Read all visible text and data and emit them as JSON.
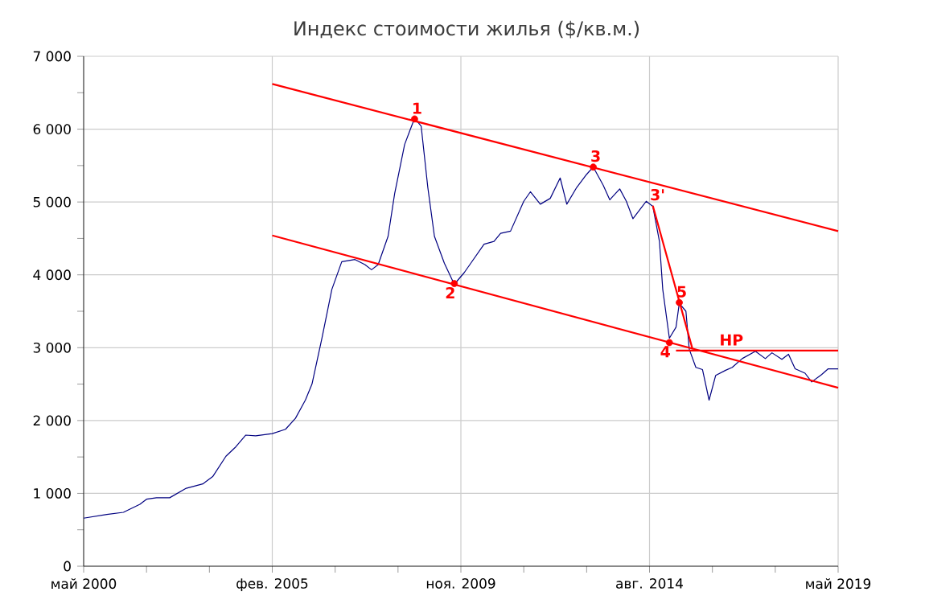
{
  "chart_data": {
    "type": "line",
    "title": "Индекс стоимости жилья ($/кв.м.)",
    "xlim": [
      "2000-05",
      "2019-05"
    ],
    "xticks": [
      {
        "value": "2000-05",
        "label": "май 2000"
      },
      {
        "value": "2001-12",
        "label": null
      },
      {
        "value": "2003-07",
        "label": null
      },
      {
        "value": "2005-02",
        "label": "фев. 2005"
      },
      {
        "value": "2006-09",
        "label": null
      },
      {
        "value": "2008-04",
        "label": null
      },
      {
        "value": "2009-11",
        "label": "ноя. 2009"
      },
      {
        "value": "2011-06",
        "label": null
      },
      {
        "value": "2013-01",
        "label": null
      },
      {
        "value": "2014-08",
        "label": "авг. 2014"
      },
      {
        "value": "2016-03",
        "label": null
      },
      {
        "value": "2017-10",
        "label": null
      },
      {
        "value": "2019-05",
        "label": "май 2019"
      }
    ],
    "ylim": [
      0,
      7000
    ],
    "yticks": [
      {
        "value": 0,
        "label": "0"
      },
      {
        "value": 500,
        "label": null
      },
      {
        "value": 1000,
        "label": "1 000"
      },
      {
        "value": 1500,
        "label": null
      },
      {
        "value": 2000,
        "label": "2 000"
      },
      {
        "value": 2500,
        "label": null
      },
      {
        "value": 3000,
        "label": "3 000"
      },
      {
        "value": 3500,
        "label": null
      },
      {
        "value": 4000,
        "label": "4 000"
      },
      {
        "value": 4500,
        "label": null
      },
      {
        "value": 5000,
        "label": "5 000"
      },
      {
        "value": 5500,
        "label": null
      },
      {
        "value": 6000,
        "label": "6 000"
      },
      {
        "value": 6500,
        "label": null
      },
      {
        "value": 7000,
        "label": "7 000"
      }
    ],
    "grid": true,
    "series": [
      {
        "type": "line",
        "color": "#000080",
        "x": [
          "2000-05",
          "2000-12",
          "2001-05",
          "2001-10",
          "2001-12",
          "2002-03",
          "2002-07",
          "2002-12",
          "2003-05",
          "2003-08",
          "2003-12",
          "2004-03",
          "2004-06",
          "2004-09",
          "2005-02",
          "2005-06",
          "2005-09",
          "2005-12",
          "2006-02",
          "2006-05",
          "2006-08",
          "2006-11",
          "2007-03",
          "2007-06",
          "2007-08",
          "2007-10",
          "2008-01",
          "2008-03",
          "2008-06",
          "2008-09",
          "2008-11",
          "2009-01",
          "2009-03",
          "2009-06",
          "2009-09",
          "2009-12",
          "2010-02",
          "2010-06",
          "2010-09",
          "2010-11",
          "2011-02",
          "2011-06",
          "2011-08",
          "2011-11",
          "2012-02",
          "2012-05",
          "2012-07",
          "2012-10",
          "2013-01",
          "2013-03",
          "2013-06",
          "2013-08",
          "2013-11",
          "2014-01",
          "2014-03",
          "2014-07",
          "2014-09",
          "2014-11",
          "2014-12",
          "2015-02",
          "2015-04",
          "2015-05",
          "2015-07",
          "2015-08",
          "2015-10",
          "2015-12",
          "2016-02",
          "2016-04",
          "2016-07",
          "2016-09",
          "2016-12",
          "2017-04",
          "2017-07",
          "2017-09",
          "2017-12",
          "2018-02",
          "2018-04",
          "2018-07",
          "2018-09",
          "2018-12",
          "2019-02",
          "2019-05"
        ],
        "values": [
          660,
          710,
          740,
          850,
          920,
          940,
          940,
          1070,
          1130,
          1230,
          1510,
          1640,
          1800,
          1790,
          1820,
          1880,
          2030,
          2280,
          2500,
          3130,
          3800,
          4180,
          4210,
          4140,
          4070,
          4140,
          4530,
          5120,
          5790,
          6150,
          6040,
          5200,
          4530,
          4160,
          3870,
          4030,
          4160,
          4420,
          4460,
          4570,
          4600,
          5010,
          5140,
          4970,
          5050,
          5330,
          4970,
          5200,
          5380,
          5480,
          5230,
          5030,
          5180,
          5010,
          4770,
          5010,
          4940,
          4460,
          3800,
          3130,
          3280,
          3610,
          3500,
          2980,
          2730,
          2700,
          2280,
          2620,
          2690,
          2730,
          2850,
          2950,
          2850,
          2930,
          2840,
          2910,
          2710,
          2650,
          2530,
          2630,
          2710,
          2710
        ]
      },
      {
        "type": "line",
        "color": "#ff0000",
        "x": [
          "2005-02",
          "2019-05"
        ],
        "values": [
          6620,
          4600
        ]
      },
      {
        "type": "line",
        "color": "#ff0000",
        "x": [
          "2005-02",
          "2019-05"
        ],
        "values": [
          4540,
          2450
        ]
      },
      {
        "type": "line",
        "color": "#ff0000",
        "x": [
          "2014-09",
          "2015-09"
        ],
        "values": [
          4950,
          2980
        ]
      },
      {
        "type": "line",
        "color": "#ff0000",
        "x": [
          "2015-04",
          "2019-05"
        ],
        "values": [
          2960,
          2960
        ]
      },
      {
        "type": "scatter",
        "color": "#ff0000",
        "marker": "circle",
        "x": [
          "2008-09",
          "2009-09",
          "2013-03",
          "2015-02",
          "2015-05"
        ],
        "values": [
          6140,
          3880,
          5480,
          3070,
          3620
        ]
      }
    ],
    "annotations": [
      {
        "text": "1",
        "x": "2008-09",
        "y": 6140
      },
      {
        "text": "2",
        "x": "2009-09",
        "y": 3880
      },
      {
        "text": "3",
        "x": "2013-03",
        "y": 5480
      },
      {
        "text": "3'",
        "x": "2014-09",
        "y": 4950
      },
      {
        "text": "4",
        "x": "2015-02",
        "y": 3070
      },
      {
        "text": "5",
        "x": "2015-05",
        "y": 3620
      },
      {
        "text": "НР",
        "x": "2016-06",
        "y": 2960
      }
    ]
  }
}
